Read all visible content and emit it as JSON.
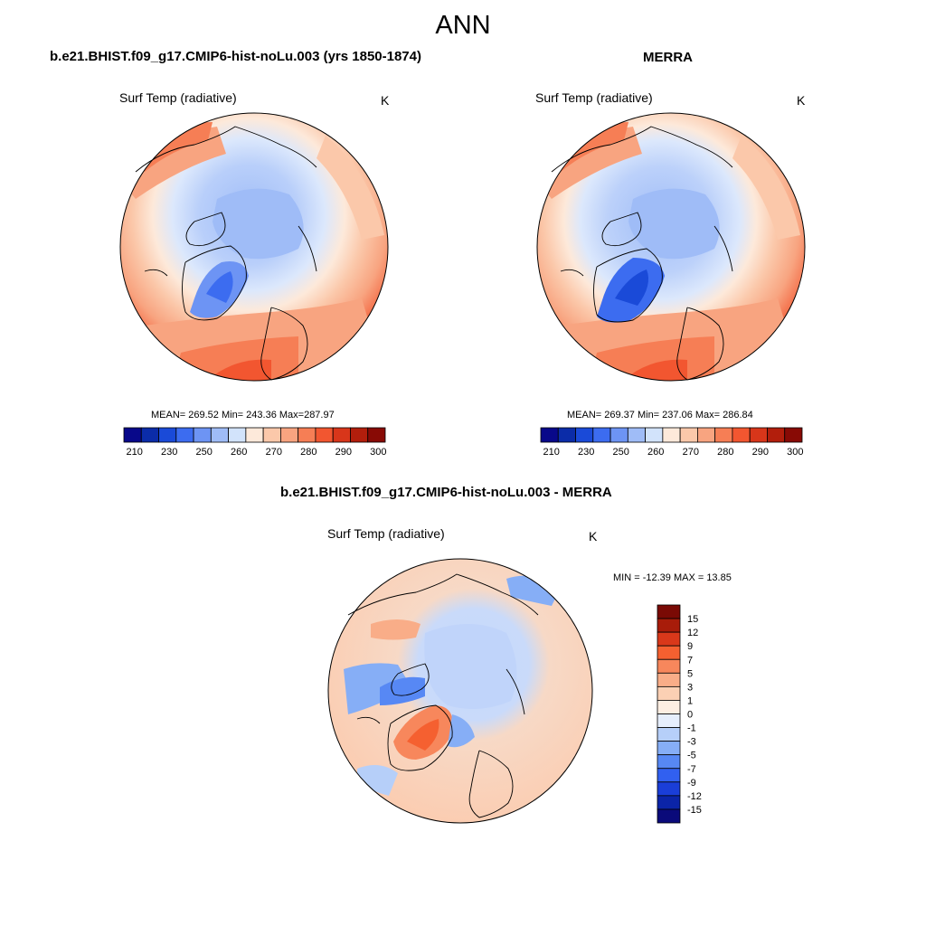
{
  "title": "ANN",
  "panels": [
    {
      "case_title": "b.e21.BHIST.f09_g17.CMIP6-hist-noLu.003 (yrs 1850-1874)",
      "variable": "Surf Temp (radiative)",
      "units": "K",
      "stats": "MEAN= 269.52  Min= 243.36  Max=287.97"
    },
    {
      "case_title": "MERRA",
      "variable": "Surf Temp (radiative)",
      "units": "K",
      "stats": "MEAN= 269.37  Min= 237.06  Max= 286.84"
    },
    {
      "case_title": "b.e21.BHIST.f09_g17.CMIP6-hist-noLu.003 - MERRA",
      "variable": "Surf Temp (radiative)",
      "units": "K",
      "stats": "MIN = -12.39 MAX =  13.85"
    }
  ],
  "colorbar_abs": {
    "colors": [
      "#08088a",
      "#0b2ca8",
      "#1a4ad8",
      "#3c6cf0",
      "#6d94f4",
      "#9fbcf7",
      "#d2e3fb",
      "#fde9da",
      "#fbc8aa",
      "#f8a480",
      "#f67e55",
      "#f25630",
      "#d8361a",
      "#b21e0c",
      "#880a05"
    ],
    "tick_labels": [
      "210",
      "230",
      "250",
      "260",
      "270",
      "280",
      "290",
      "300"
    ]
  },
  "colorbar_diff": {
    "colors": [
      "#0a0a7a",
      "#0b24a8",
      "#1a3ed8",
      "#3160f0",
      "#5788f4",
      "#86aef6",
      "#b6cff9",
      "#e6eefc",
      "#fdeee2",
      "#fbd0b4",
      "#f9ad88",
      "#f7875c",
      "#f56030",
      "#d9381a",
      "#a81c0a",
      "#7a0a05"
    ],
    "tick_labels": [
      "15",
      "12",
      "9",
      "7",
      "5",
      "3",
      "1",
      "0",
      "-1",
      "-3",
      "-5",
      "-7",
      "-9",
      "-12",
      "-15"
    ]
  }
}
